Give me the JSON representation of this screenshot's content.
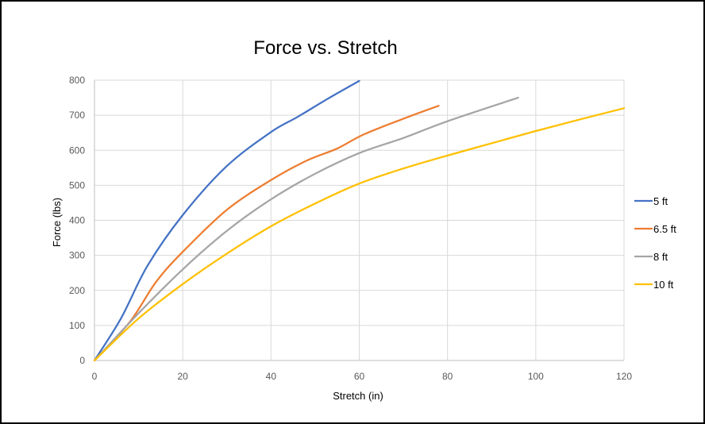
{
  "chart_data": {
    "type": "line",
    "title": "Force vs. Stretch",
    "xlabel": "Stretch (in)",
    "ylabel": "Force (lbs)",
    "xlim": [
      0,
      120
    ],
    "ylim": [
      0,
      800
    ],
    "xticks": [
      0,
      20,
      40,
      60,
      80,
      100,
      120
    ],
    "yticks": [
      0,
      100,
      200,
      300,
      400,
      500,
      600,
      700,
      800
    ],
    "grid": true,
    "legend_position": "right",
    "series": [
      {
        "name": "5 ft",
        "color": "#4472c4",
        "x": [
          0,
          6,
          12,
          20,
          30,
          40,
          46,
          53,
          60
        ],
        "y": [
          0,
          120,
          270,
          415,
          555,
          652,
          695,
          748,
          798
        ]
      },
      {
        "name": "6.5 ft",
        "color": "#ed7d31",
        "x": [
          0,
          8,
          14,
          20,
          30,
          40,
          48,
          55,
          61,
          70,
          78
        ],
        "y": [
          0,
          110,
          225,
          310,
          430,
          515,
          570,
          605,
          645,
          690,
          727
        ]
      },
      {
        "name": "8 ft",
        "color": "#a5a5a5",
        "x": [
          0,
          10,
          20,
          30,
          40,
          50,
          60,
          70,
          80,
          96
        ],
        "y": [
          0,
          135,
          260,
          370,
          460,
          533,
          592,
          635,
          683,
          750
        ]
      },
      {
        "name": "10 ft",
        "color": "#ffc000",
        "x": [
          0,
          10,
          20,
          30,
          40,
          50,
          60,
          70,
          80,
          90,
          100,
          110,
          120
        ],
        "y": [
          0,
          120,
          218,
          305,
          383,
          448,
          505,
          548,
          585,
          620,
          655,
          688,
          720
        ]
      }
    ]
  }
}
